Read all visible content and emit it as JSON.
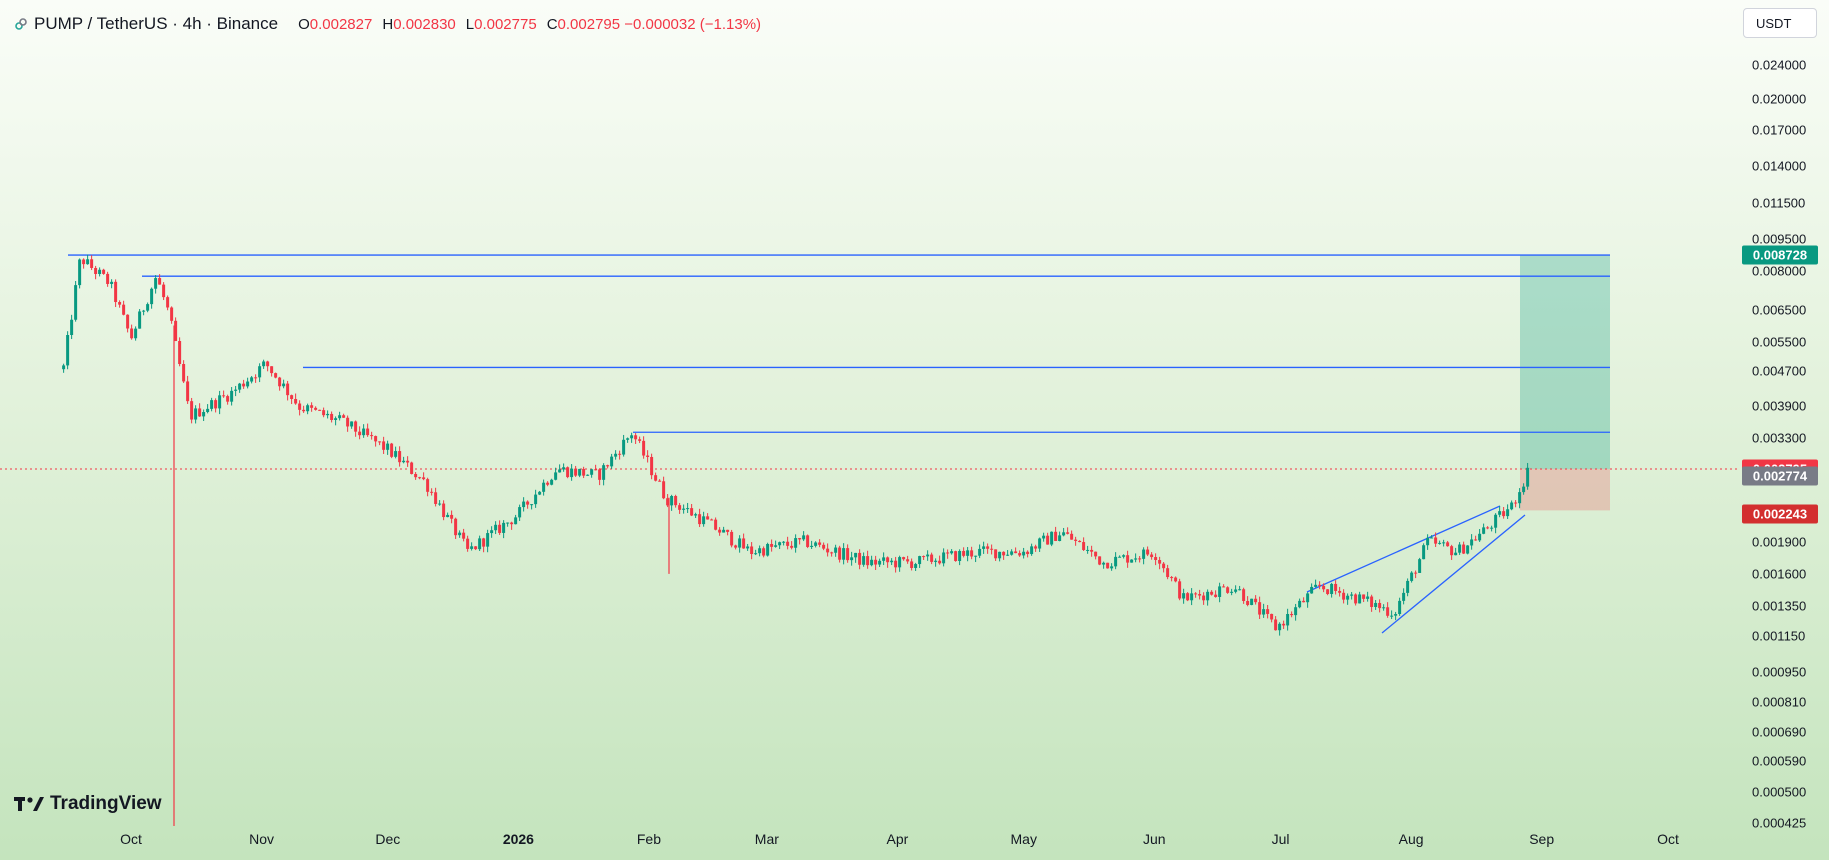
{
  "legend": {
    "symbol": "PUMP / TetherUS · 4h · Binance",
    "ohlc": [
      {
        "key": "O",
        "value": "0.002827"
      },
      {
        "key": "H",
        "value": "0.002830"
      },
      {
        "key": "L",
        "value": "0.002775"
      },
      {
        "key": "C",
        "value": "0.002795 −0.000032 (−1.13%)"
      }
    ]
  },
  "currency_button": "USDT",
  "price_axis": [
    "0.024000",
    "0.020000",
    "0.017000",
    "0.014000",
    "0.011500",
    "0.009500",
    "0.008000",
    "0.006500",
    "0.005500",
    "0.004700",
    "0.003900",
    "0.003300",
    "0.001900",
    "0.001600",
    "0.001350",
    "0.001150",
    "0.000950",
    "0.000810",
    "0.000690",
    "0.000590",
    "0.000500",
    "0.000425"
  ],
  "badges": [
    {
      "label": "0.008728",
      "color": "#089981"
    },
    {
      "label": "0.002795",
      "color": "#f23645"
    },
    {
      "label": "0.002774",
      "color": "#787b86"
    },
    {
      "label": "0.002243",
      "color": "#d32f2f"
    }
  ],
  "time_axis": [
    "Oct",
    "Nov",
    "Dec",
    "2026",
    "Feb",
    "Mar",
    "Apr",
    "May",
    "Jun",
    "Jul",
    "Aug",
    "Sep",
    "Oct"
  ],
  "logo_text": "TradingView",
  "colors": {
    "up": "#089981",
    "down": "#f23645",
    "lines": "#2962ff",
    "target_zone": "#089981",
    "stop_zone": "#f23645"
  },
  "chart_data": {
    "type": "candlestick",
    "scale": "log",
    "pair": "PUMP/USDT",
    "timeframe": "4h",
    "ylim": [
      0.000425,
      0.024
    ],
    "series": [
      {
        "name": "close",
        "x": [
          "2025-09-15",
          "2025-09-19",
          "2025-09-26",
          "2025-10-01",
          "2025-10-07",
          "2025-10-10",
          "2025-10-15",
          "2025-10-25",
          "2025-11-02",
          "2025-11-10",
          "2025-11-20",
          "2025-12-01",
          "2025-12-10",
          "2025-12-20",
          "2026-01-01",
          "2026-01-10",
          "2026-01-20",
          "2026-01-28",
          "2026-02-05",
          "2026-02-15",
          "2026-02-25",
          "2026-03-10",
          "2026-03-25",
          "2026-04-05",
          "2026-04-20",
          "2026-05-01",
          "2026-05-10",
          "2026-05-20",
          "2026-06-01",
          "2026-06-08",
          "2026-06-20",
          "2026-06-30",
          "2026-07-10",
          "2026-07-20",
          "2026-07-28",
          "2026-08-05",
          "2026-08-12",
          "2026-08-18",
          "2026-08-25",
          "2026-08-29"
        ],
        "values": [
          0.0048,
          0.0086,
          0.0075,
          0.0056,
          0.0078,
          0.0064,
          0.0037,
          0.0042,
          0.0049,
          0.0039,
          0.0036,
          0.0031,
          0.0026,
          0.0018,
          0.0022,
          0.0028,
          0.0027,
          0.0034,
          0.0024,
          0.0021,
          0.0018,
          0.0019,
          0.0017,
          0.0017,
          0.0018,
          0.0018,
          0.002,
          0.0017,
          0.0018,
          0.0014,
          0.0015,
          0.0012,
          0.0015,
          0.0014,
          0.0013,
          0.0019,
          0.0018,
          0.002,
          0.0023,
          0.0028
        ]
      }
    ],
    "horizontal_levels": [
      0.008728,
      0.0078,
      0.0048,
      0.0034
    ],
    "position": {
      "target": 0.008728,
      "entry": 0.002795,
      "stop": 0.002243
    },
    "last_price": 0.002795
  }
}
